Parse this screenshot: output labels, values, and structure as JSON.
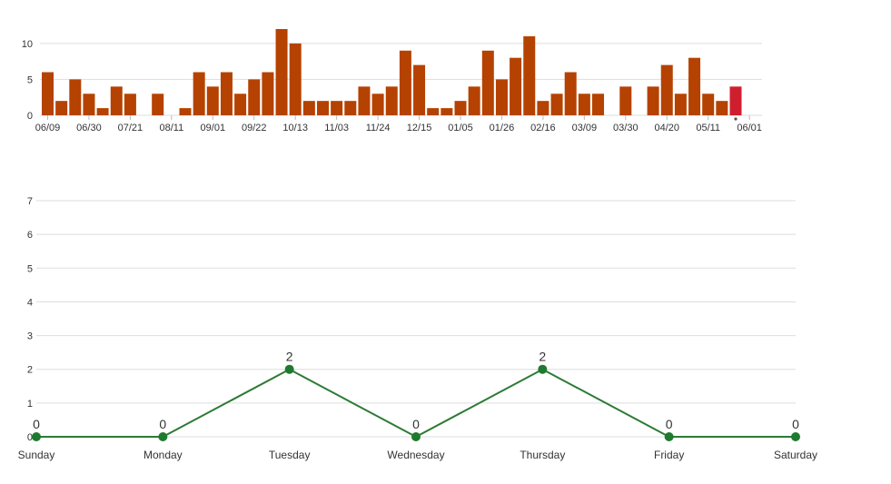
{
  "colors": {
    "bar": "#b54200",
    "bar_highlight": "#cf1f2e",
    "line": "#2d7a35",
    "point": "#1e7a2e"
  },
  "chart_data": [
    {
      "type": "bar",
      "name": "weekly-counts",
      "x_tick_labels": [
        "06/09",
        "06/30",
        "07/21",
        "08/11",
        "09/01",
        "09/22",
        "10/13",
        "11/03",
        "11/24",
        "12/15",
        "01/05",
        "01/26",
        "02/16",
        "03/09",
        "03/30",
        "04/20",
        "05/11",
        "06/01"
      ],
      "values": [
        6,
        2,
        5,
        3,
        1,
        4,
        3,
        0,
        3,
        0,
        1,
        6,
        4,
        6,
        3,
        5,
        6,
        12,
        10,
        2,
        2,
        2,
        2,
        4,
        3,
        4,
        9,
        7,
        1,
        1,
        2,
        4,
        9,
        5,
        8,
        11,
        2,
        3,
        6,
        3,
        3,
        0,
        4,
        0,
        4,
        7,
        3,
        8,
        3,
        2,
        4
      ],
      "highlight_index": 50,
      "ylim": [
        0,
        12
      ],
      "y_ticks": [
        0,
        5,
        10
      ],
      "grid": true,
      "title": "",
      "xlabel": "",
      "ylabel": ""
    },
    {
      "type": "line",
      "name": "weekday-counts",
      "categories": [
        "Sunday",
        "Monday",
        "Tuesday",
        "Wednesday",
        "Thursday",
        "Friday",
        "Saturday"
      ],
      "values": [
        0,
        0,
        2,
        0,
        2,
        0,
        0
      ],
      "ylim": [
        0,
        7
      ],
      "y_ticks": [
        0,
        1,
        2,
        3,
        4,
        5,
        6,
        7
      ],
      "grid": true,
      "show_data_labels": true,
      "title": "",
      "xlabel": "",
      "ylabel": ""
    }
  ]
}
